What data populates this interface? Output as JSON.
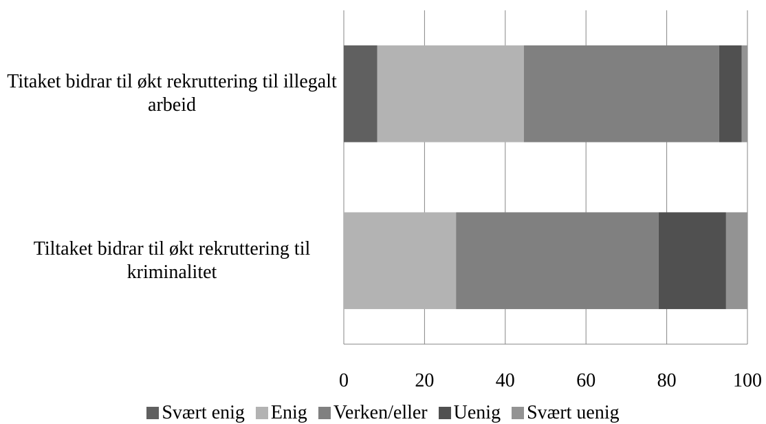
{
  "chart_data": {
    "type": "stacked-barh",
    "categories": [
      "Titaket bidrar til økt rekruttering til illegalt arbeid",
      "Tiltaket bidrar til økt rekruttering til kriminalitet"
    ],
    "series": [
      {
        "name": "Svært enig",
        "color": "#606060",
        "values": [
          8.3,
          0
        ]
      },
      {
        "name": "Enig",
        "color": "#b3b3b3",
        "values": [
          36.3,
          27.8
        ]
      },
      {
        "name": "Verken/eller",
        "color": "#808080",
        "values": [
          48.4,
          50.2
        ]
      },
      {
        "name": "Uenig",
        "color": "#505050",
        "values": [
          5.6,
          16.7
        ]
      },
      {
        "name": "Svært uenig",
        "color": "#939393",
        "values": [
          1.4,
          5.3
        ]
      }
    ],
    "xlim": [
      0,
      100
    ],
    "xticks": [
      0,
      20,
      40,
      60,
      80,
      100
    ],
    "grid": true,
    "legend": "bottom"
  }
}
